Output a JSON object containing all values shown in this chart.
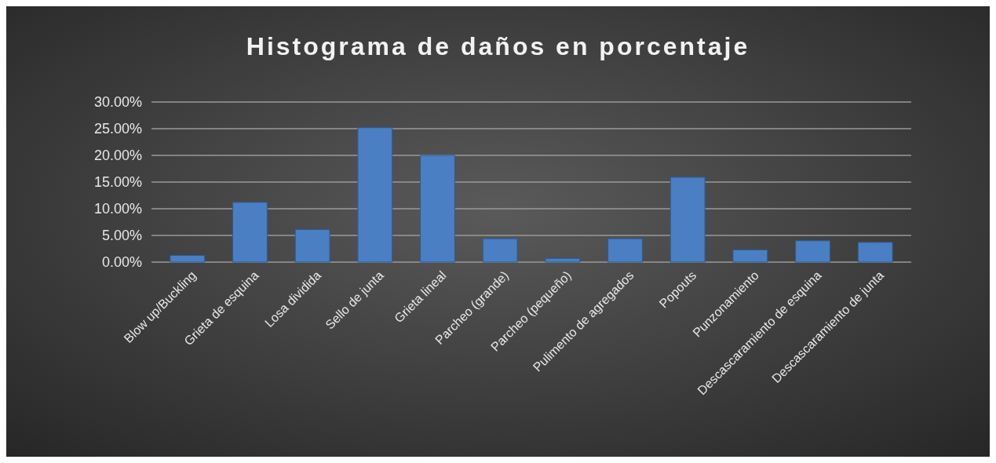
{
  "chart_data": {
    "type": "bar",
    "title": "Histograma de daños en porcentaje",
    "categories": [
      "Blow up/Buckling",
      "Grieta de esquina",
      "Losa dividida",
      "Sello de junta",
      "Grieta lineal",
      "Parcheo (grande)",
      "Parcheo (pequeño)",
      "Pulimento de agregados",
      "Popouts",
      "Punzonamiento",
      "Descascaramiento de esquina",
      "Descascaramiento de junta"
    ],
    "values": [
      1.25,
      11.2,
      6.1,
      25.2,
      20.0,
      4.4,
      0.7,
      4.4,
      15.9,
      2.3,
      4.0,
      3.7
    ],
    "color": "#4a7fc4",
    "ylim": [
      0,
      30
    ],
    "yticks": [
      {
        "value": 0,
        "label": "0.00%"
      },
      {
        "value": 5,
        "label": "5.00%"
      },
      {
        "value": 10,
        "label": "10.00%"
      },
      {
        "value": 15,
        "label": "15.00%"
      },
      {
        "value": 20,
        "label": "20.00%"
      },
      {
        "value": 25,
        "label": "25.00%"
      },
      {
        "value": 30,
        "label": "30.00%"
      }
    ],
    "grid": "y"
  }
}
